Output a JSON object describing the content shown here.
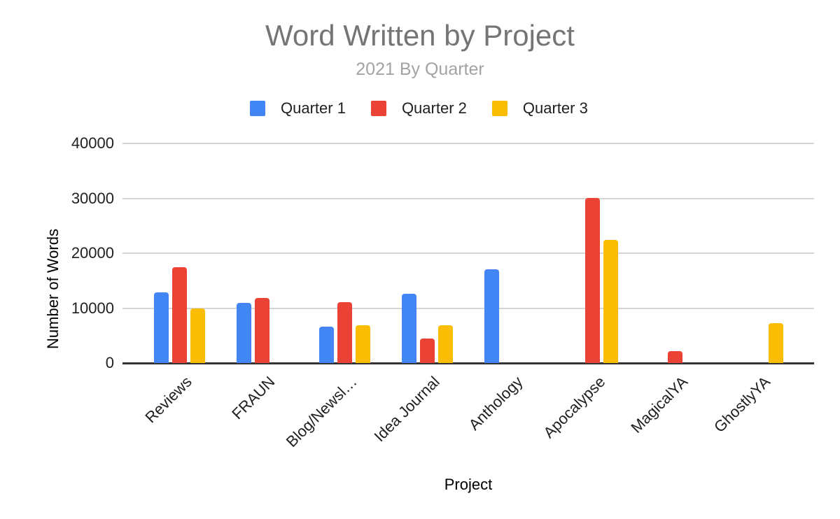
{
  "chart_data": {
    "type": "bar",
    "title": "Word Written by Project",
    "subtitle": "2021 By Quarter",
    "xlabel": "Project",
    "ylabel": "Number of Words",
    "categories": [
      "Reviews",
      "FRAUN",
      "Blog/Newsl…",
      "Idea Journal",
      "Anthology",
      "Apocalypse",
      "MagicalYA",
      "GhostlyYA"
    ],
    "series": [
      {
        "name": "Quarter 1",
        "color": "#4285F4",
        "values": [
          12900,
          10900,
          6600,
          12650,
          17050,
          0,
          0,
          0
        ]
      },
      {
        "name": "Quarter 2",
        "color": "#EA4335",
        "values": [
          17450,
          11900,
          11100,
          4500,
          0,
          30100,
          2200,
          0
        ]
      },
      {
        "name": "Quarter 3",
        "color": "#FBBC04",
        "values": [
          9900,
          0,
          6850,
          6850,
          0,
          22400,
          0,
          7250
        ]
      }
    ],
    "ylim": [
      0,
      40000
    ],
    "yticks": [
      0,
      10000,
      20000,
      30000,
      40000
    ],
    "grid": true,
    "legend_position": "top"
  },
  "colors": {
    "title_text": "#757575",
    "subtitle_text": "#A3A3A3",
    "axis_text": "#1F1F1F",
    "gridline": "#D5D5D5",
    "axis_line": "#333333",
    "background": "#FFFFFF"
  }
}
